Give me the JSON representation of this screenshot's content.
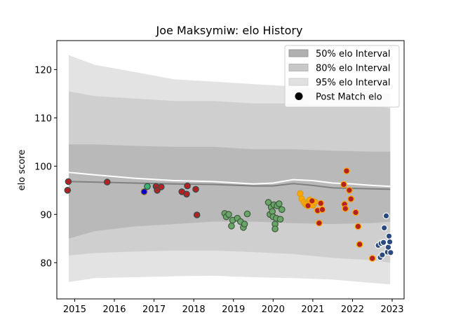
{
  "chart_data": {
    "type": "scatter",
    "title": "Joe Maksymiw: elo History",
    "xlabel": "",
    "ylabel": "elo score",
    "xlim": [
      2014.55,
      2023.3
    ],
    "ylim": [
      72.5,
      126
    ],
    "xticks": [
      2015,
      2016,
      2017,
      2018,
      2019,
      2020,
      2021,
      2022,
      2023
    ],
    "yticks": [
      80,
      90,
      100,
      110,
      120
    ],
    "grid": false,
    "legend_position": "top-right",
    "legend": [
      {
        "label": "50% elo Interval",
        "kind": "band",
        "color": "#aaaaaa"
      },
      {
        "label": "80% elo Interval",
        "kind": "band",
        "color": "#c4c4c4"
      },
      {
        "label": "95% elo Interval",
        "kind": "band",
        "color": "#e0e0e0"
      },
      {
        "label": "Post Match elo",
        "kind": "marker",
        "color": "#000000"
      }
    ],
    "bands": {
      "x": [
        2014.85,
        2015.5,
        2016.5,
        2017.5,
        2018.5,
        2019.5,
        2020.5,
        2021.5,
        2022.5,
        2022.95
      ],
      "p95_upper": [
        123.0,
        121.0,
        119.5,
        118.0,
        117.5,
        117.0,
        116.5,
        116.0,
        115.5,
        115.0
      ],
      "p95_lower": [
        76.0,
        76.8,
        77.0,
        77.2,
        77.3,
        77.0,
        76.8,
        76.5,
        75.8,
        75.5
      ],
      "p80_upper": [
        115.5,
        114.5,
        114.0,
        113.5,
        113.5,
        113.0,
        113.0,
        112.5,
        112.5,
        112.0
      ],
      "p80_lower": [
        81.5,
        82.0,
        82.3,
        82.5,
        82.5,
        82.2,
        81.8,
        81.0,
        80.5,
        80.0
      ],
      "p50_upper": [
        104.5,
        104.5,
        104.2,
        104.0,
        104.0,
        103.5,
        103.5,
        103.2,
        103.0,
        103.0
      ],
      "p50_lower": [
        85.0,
        86.5,
        87.5,
        88.0,
        88.5,
        88.5,
        88.2,
        88.0,
        88.2,
        88.5
      ]
    },
    "mean_line": {
      "color": "#ffffff",
      "x": [
        2014.85,
        2015.5,
        2016.5,
        2017.5,
        2018.5,
        2019.5,
        2020.0,
        2020.5,
        2021.0,
        2021.5,
        2022.0,
        2022.5,
        2022.95
      ],
      "y": [
        98.7,
        98.2,
        97.5,
        97.0,
        96.8,
        96.3,
        96.5,
        97.2,
        97.0,
        96.5,
        96.3,
        96.0,
        95.8
      ]
    },
    "median_line": {
      "color": "#808080",
      "x": [
        2014.85,
        2015.5,
        2016.5,
        2017.5,
        2018.5,
        2019.5,
        2020.0,
        2020.5,
        2021.0,
        2021.5,
        2022.0,
        2022.5,
        2022.95
      ],
      "y": [
        96.8,
        96.7,
        96.5,
        96.3,
        96.2,
        95.9,
        95.9,
        96.4,
        96.0,
        95.5,
        95.4,
        95.3,
        95.2
      ]
    },
    "series": [
      {
        "fill": "#b22222",
        "edge": "#2f4f4f",
        "points": [
          [
            2014.82,
            95.0
          ],
          [
            2014.84,
            96.8
          ],
          [
            2015.82,
            96.7
          ],
          [
            2017.05,
            95.8
          ],
          [
            2017.08,
            95.0
          ],
          [
            2017.18,
            95.7
          ],
          [
            2017.7,
            94.7
          ],
          [
            2017.82,
            94.2
          ],
          [
            2017.84,
            95.9
          ],
          [
            2018.05,
            95.2
          ],
          [
            2018.08,
            89.9
          ]
        ]
      },
      {
        "fill": "#0000cd",
        "edge": "#8b6914",
        "points": [
          [
            2016.75,
            94.7
          ]
        ]
      },
      {
        "fill": "#3cb371",
        "edge": "#2f4f4f",
        "points": [
          [
            2016.83,
            95.8
          ]
        ]
      },
      {
        "fill": "#6aa56a",
        "edge": "#3c5a3c",
        "points": [
          [
            2018.78,
            90.2
          ],
          [
            2018.82,
            89.5
          ],
          [
            2018.88,
            90.0
          ],
          [
            2018.95,
            87.6
          ],
          [
            2018.98,
            88.8
          ],
          [
            2019.1,
            89.2
          ],
          [
            2019.18,
            88.5
          ],
          [
            2019.25,
            87.3
          ],
          [
            2019.28,
            88.0
          ],
          [
            2019.35,
            90.1
          ],
          [
            2019.88,
            92.5
          ],
          [
            2019.92,
            90.0
          ],
          [
            2019.95,
            91.5
          ],
          [
            2019.98,
            90.6
          ],
          [
            2020.0,
            89.5
          ],
          [
            2020.02,
            92.0
          ],
          [
            2020.05,
            88.0
          ],
          [
            2020.05,
            87.0
          ],
          [
            2020.08,
            89.2
          ],
          [
            2020.1,
            91.8
          ],
          [
            2020.15,
            92.2
          ],
          [
            2020.18,
            89.0
          ],
          [
            2020.22,
            91.0
          ]
        ]
      },
      {
        "fill": "#ffa500",
        "edge": "#d4a017",
        "points": [
          [
            2020.68,
            94.3
          ],
          [
            2020.72,
            93.2
          ],
          [
            2020.78,
            92.5
          ],
          [
            2020.82,
            92.1
          ],
          [
            2020.86,
            91.8
          ],
          [
            2020.92,
            93.0
          ],
          [
            2020.96,
            92.4
          ],
          [
            2021.0,
            91.9
          ],
          [
            2021.05,
            92.6
          ]
        ]
      },
      {
        "fill": "#b22222",
        "edge": "#ffa500",
        "points": [
          [
            2020.88,
            91.8
          ],
          [
            2020.98,
            92.8
          ],
          [
            2021.12,
            90.8
          ],
          [
            2021.16,
            88.2
          ],
          [
            2021.2,
            92.3
          ],
          [
            2021.24,
            91.0
          ],
          [
            2021.78,
            96.2
          ],
          [
            2021.8,
            92.1
          ],
          [
            2021.82,
            91.2
          ],
          [
            2021.85,
            99.0
          ],
          [
            2021.92,
            95.0
          ],
          [
            2021.96,
            93.2
          ],
          [
            2022.08,
            90.4
          ],
          [
            2022.14,
            87.5
          ],
          [
            2022.18,
            83.8
          ],
          [
            2022.5,
            80.9
          ]
        ]
      },
      {
        "fill": "#2a4a80",
        "edge": "#ffffff",
        "points": [
          [
            2022.65,
            83.6
          ],
          [
            2022.7,
            81.1
          ],
          [
            2022.72,
            84.0
          ],
          [
            2022.75,
            81.6
          ],
          [
            2022.78,
            84.2
          ],
          [
            2022.8,
            87.2
          ],
          [
            2022.85,
            89.7
          ],
          [
            2022.88,
            82.2
          ],
          [
            2022.9,
            83.2
          ],
          [
            2022.92,
            85.5
          ],
          [
            2022.94,
            84.3
          ],
          [
            2022.96,
            82.1
          ]
        ]
      }
    ]
  }
}
